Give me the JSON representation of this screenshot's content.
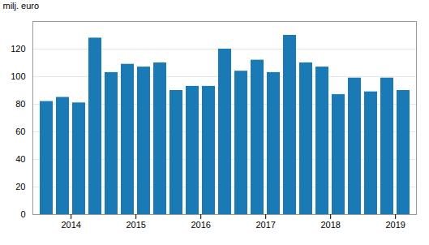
{
  "chart_data": {
    "type": "bar",
    "categories": [
      null,
      "2014",
      null,
      null,
      null,
      "2015",
      null,
      null,
      null,
      "2016",
      null,
      null,
      null,
      "2017",
      null,
      null,
      null,
      "2018",
      null,
      null,
      null,
      "2019",
      null
    ],
    "values": [
      82,
      85,
      81,
      128,
      103,
      109,
      107,
      110,
      90,
      93,
      93,
      120,
      104,
      112,
      103,
      130,
      110,
      107,
      87,
      99,
      89,
      99,
      90
    ],
    "color": "#1a7ab5",
    "ylabel": "milj. euro",
    "ylim": [
      0,
      140
    ],
    "yticks": [
      0,
      20,
      40,
      60,
      80,
      100,
      120
    ],
    "grid": true
  }
}
